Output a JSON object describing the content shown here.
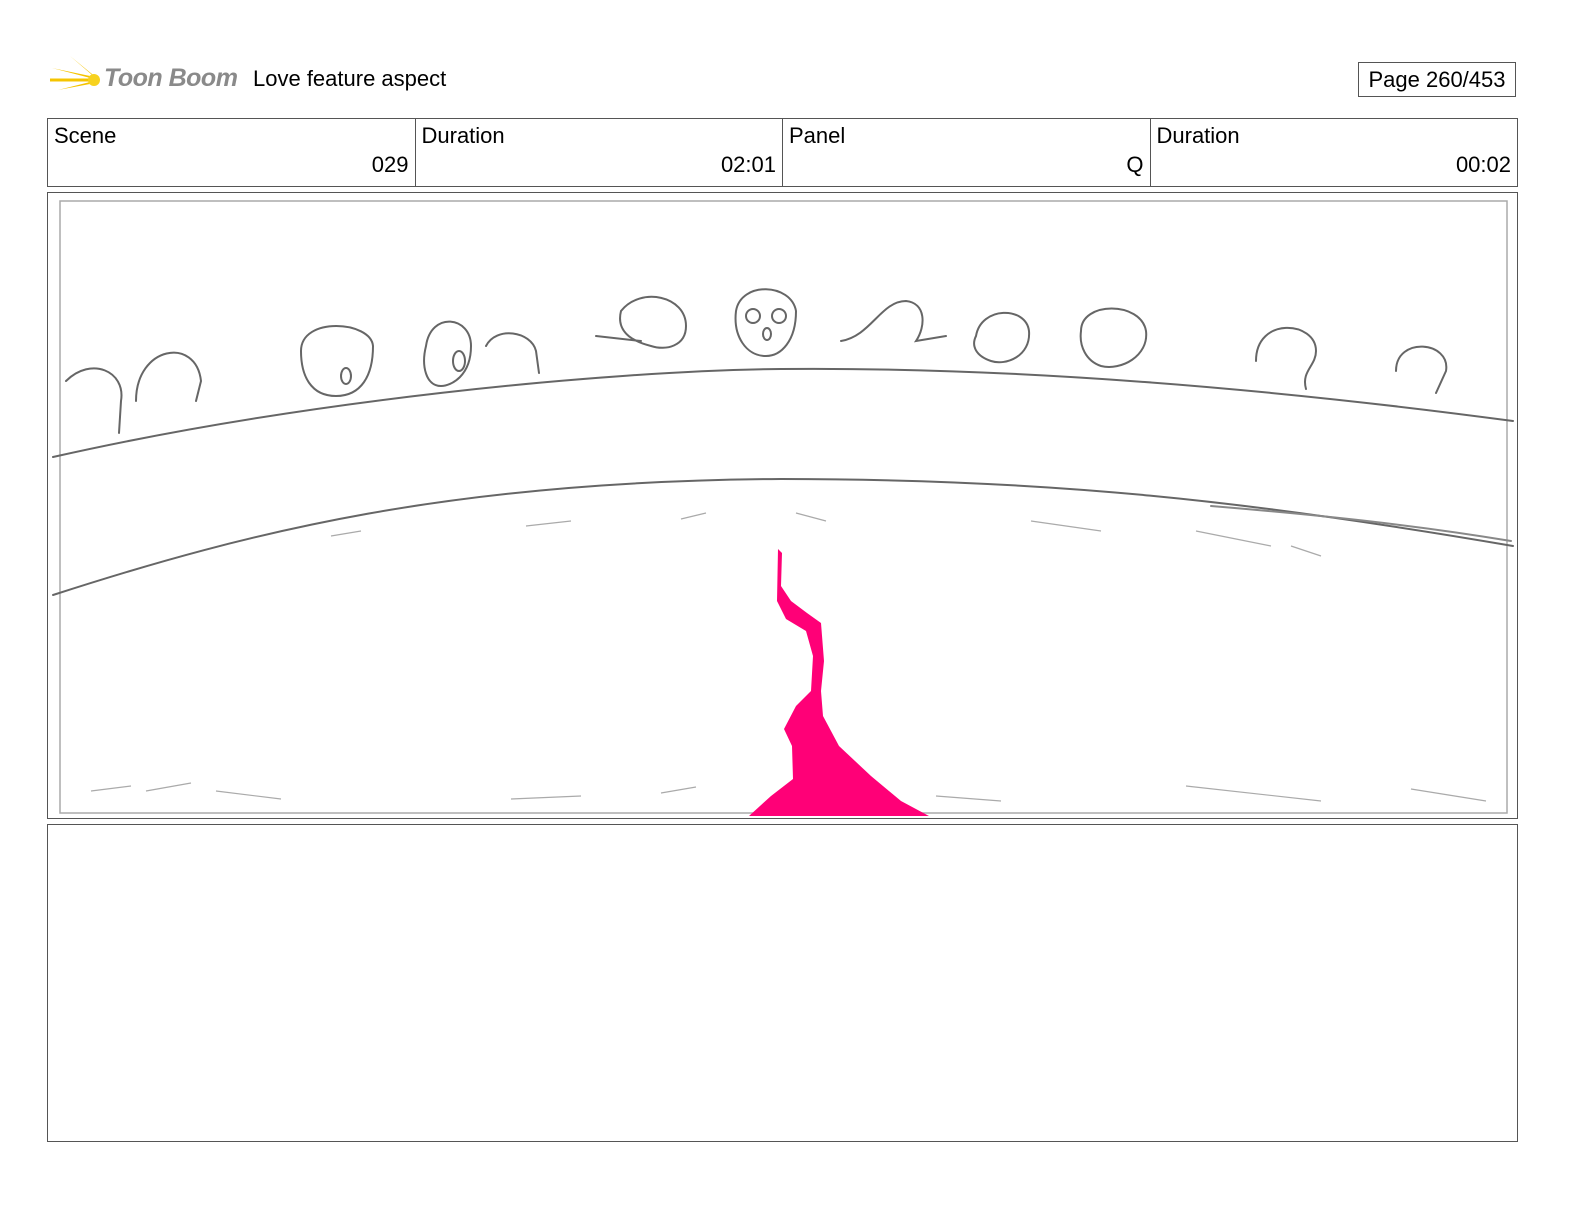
{
  "header": {
    "logo": "Toon Boom",
    "project_title": "Love feature aspect",
    "page": "Page 260/453"
  },
  "info": [
    {
      "label": "Scene",
      "value": "029"
    },
    {
      "label": "Duration",
      "value": "02:01"
    },
    {
      "label": "Panel",
      "value": "Q"
    },
    {
      "label": "Duration",
      "value": "00:02"
    }
  ],
  "colors": {
    "accent_pink": "#ff0077",
    "logo_yellow": "#f5c400",
    "sketch": "#555555"
  },
  "notes": ""
}
